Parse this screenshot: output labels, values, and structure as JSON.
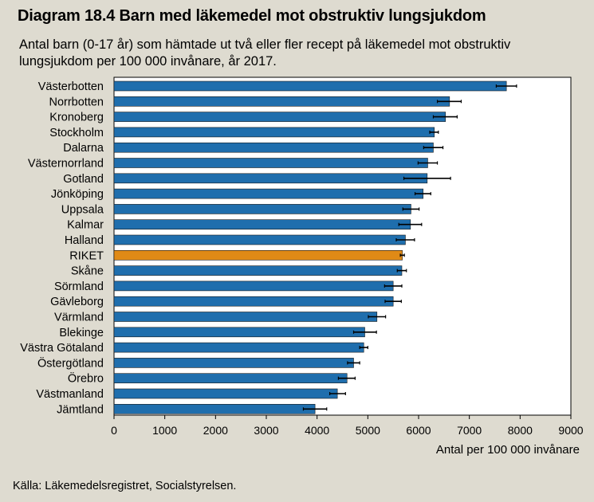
{
  "title": "Diagram 18.4 Barn med läkemedel mot obstruktiv lungsjukdom",
  "subtitle": "Antal barn (0-17 år) som hämtade ut två eller fler recept på läkemedel mot obstruktiv lungsjukdom per 100 000 invånare, år 2017.",
  "source": "Källa: Läkemedelsregistret, Socialstyrelsen.",
  "colors": {
    "bar": "#1f6ead",
    "highlight": "#e08a16",
    "error": "#000000",
    "plot_bg": "#ffffff"
  },
  "chart_data": {
    "type": "bar",
    "orientation": "horizontal",
    "title": "Diagram 18.4 Barn med läkemedel mot obstruktiv lungsjukdom",
    "xlabel": "Antal per 100 000 invånare",
    "ylabel": "",
    "xlim": [
      0,
      9000
    ],
    "xticks": [
      0,
      1000,
      2000,
      3000,
      4000,
      5000,
      6000,
      7000,
      8000,
      9000
    ],
    "grid": false,
    "highlight_category": "RIKET",
    "categories": [
      "Västerbotten",
      "Norrbotten",
      "Kronoberg",
      "Stockholm",
      "Dalarna",
      "Västernorrland",
      "Gotland",
      "Jönköping",
      "Uppsala",
      "Kalmar",
      "Halland",
      "RIKET",
      "Skåne",
      "Sörmland",
      "Gävleborg",
      "Värmland",
      "Blekinge",
      "Västra Götaland",
      "Östergötland",
      "Örebro",
      "Västmanland",
      "Jämtland"
    ],
    "values": [
      7730,
      6610,
      6530,
      6310,
      6290,
      6180,
      6170,
      6090,
      5850,
      5840,
      5740,
      5680,
      5670,
      5500,
      5500,
      5180,
      4940,
      4920,
      4720,
      4590,
      4400,
      3960
    ],
    "error_low": [
      7530,
      6370,
      6290,
      6220,
      6100,
      5990,
      5710,
      5930,
      5690,
      5610,
      5560,
      5640,
      5580,
      5330,
      5340,
      5010,
      4720,
      4840,
      4600,
      4420,
      4250,
      3730
    ],
    "error_high": [
      7930,
      6840,
      6760,
      6390,
      6480,
      6370,
      6630,
      6240,
      6010,
      6060,
      5920,
      5720,
      5760,
      5670,
      5660,
      5350,
      5170,
      5000,
      4840,
      4750,
      4560,
      4190
    ]
  }
}
